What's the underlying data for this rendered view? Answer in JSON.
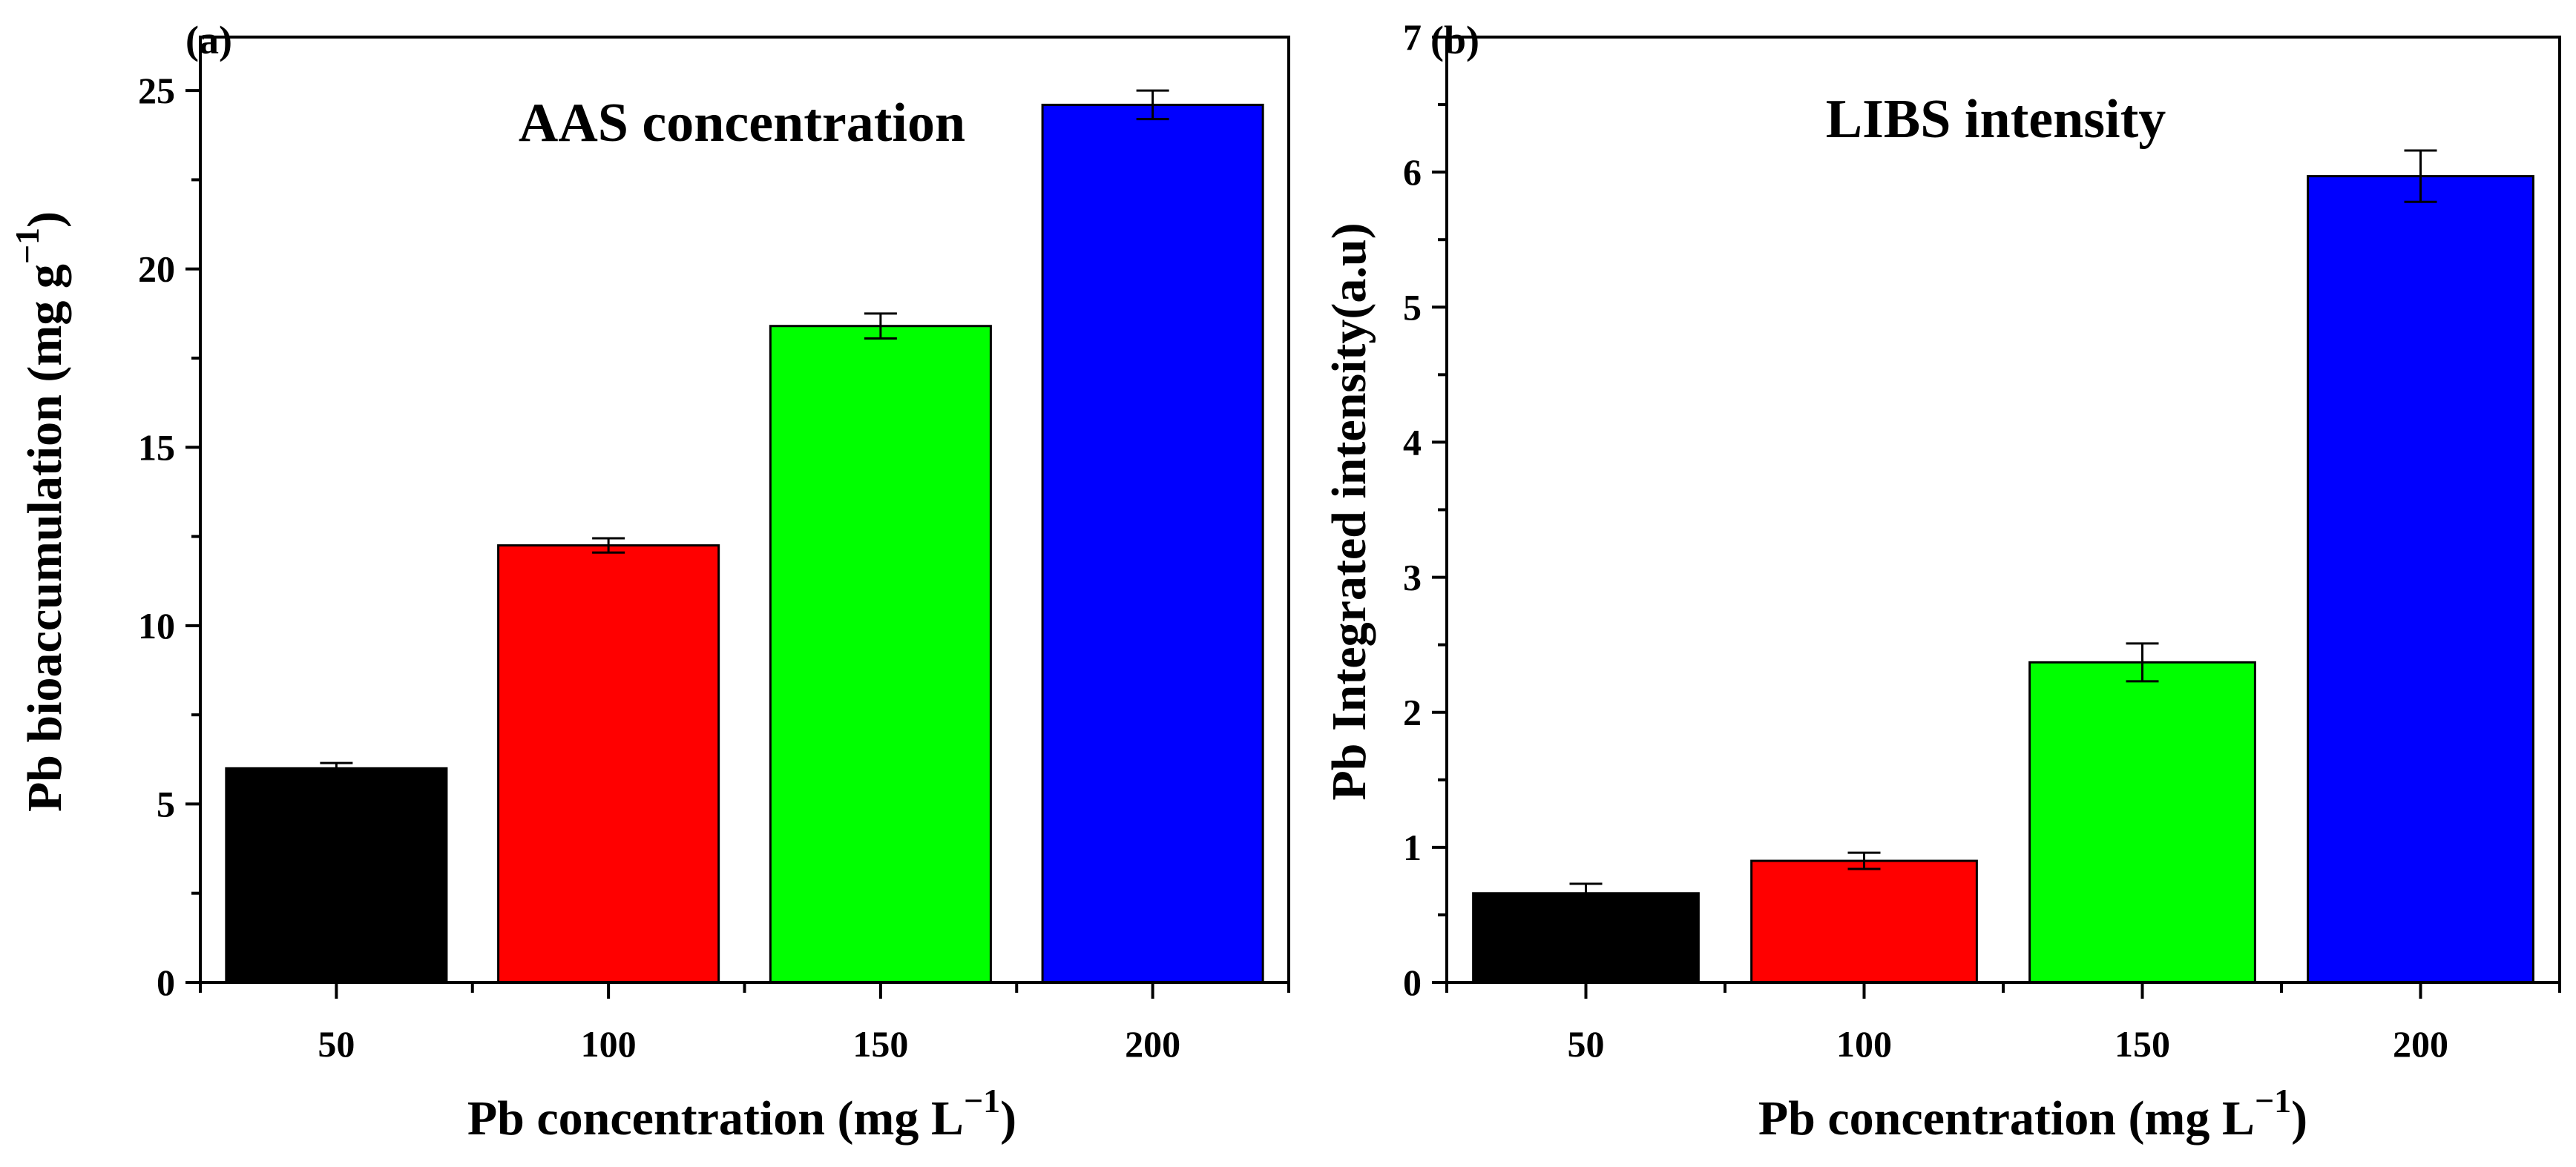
{
  "chart_data": [
    {
      "type": "bar",
      "panel_label": "(a)",
      "title": "AAS concentration",
      "xlabel": "Pb concentration (mg L",
      "xlabel_sup": "−1",
      "xlabel_end": ")",
      "ylabel": "Pb bioaccumulation (mg g",
      "ylabel_sup": "−1",
      "ylabel_end": ")",
      "categories": [
        "50",
        "100",
        "150",
        "200"
      ],
      "values": [
        6.0,
        12.25,
        18.4,
        24.6
      ],
      "errors": [
        0.15,
        0.2,
        0.35,
        0.4
      ],
      "colors": [
        "#000000",
        "#ff0000",
        "#00ff00",
        "#0000ff"
      ],
      "ylim": [
        0,
        26.5
      ],
      "yticks": [
        0,
        5,
        10,
        15,
        20,
        25
      ],
      "grid": false
    },
    {
      "type": "bar",
      "panel_label": "(b)",
      "title": "LIBS intensity",
      "xlabel": "Pb concentration (mg L",
      "xlabel_sup": "−1",
      "xlabel_end": ")",
      "ylabel": "Pb Integrated intensity(a.u)",
      "categories": [
        "50",
        "100",
        "150",
        "200"
      ],
      "values": [
        0.66,
        0.9,
        2.37,
        5.97
      ],
      "errors": [
        0.07,
        0.06,
        0.14,
        0.19
      ],
      "colors": [
        "#000000",
        "#ff0000",
        "#00ff00",
        "#0000ff"
      ],
      "ylim": [
        0,
        7
      ],
      "yticks": [
        0,
        1,
        2,
        3,
        4,
        5,
        6,
        7
      ],
      "grid": false
    }
  ]
}
